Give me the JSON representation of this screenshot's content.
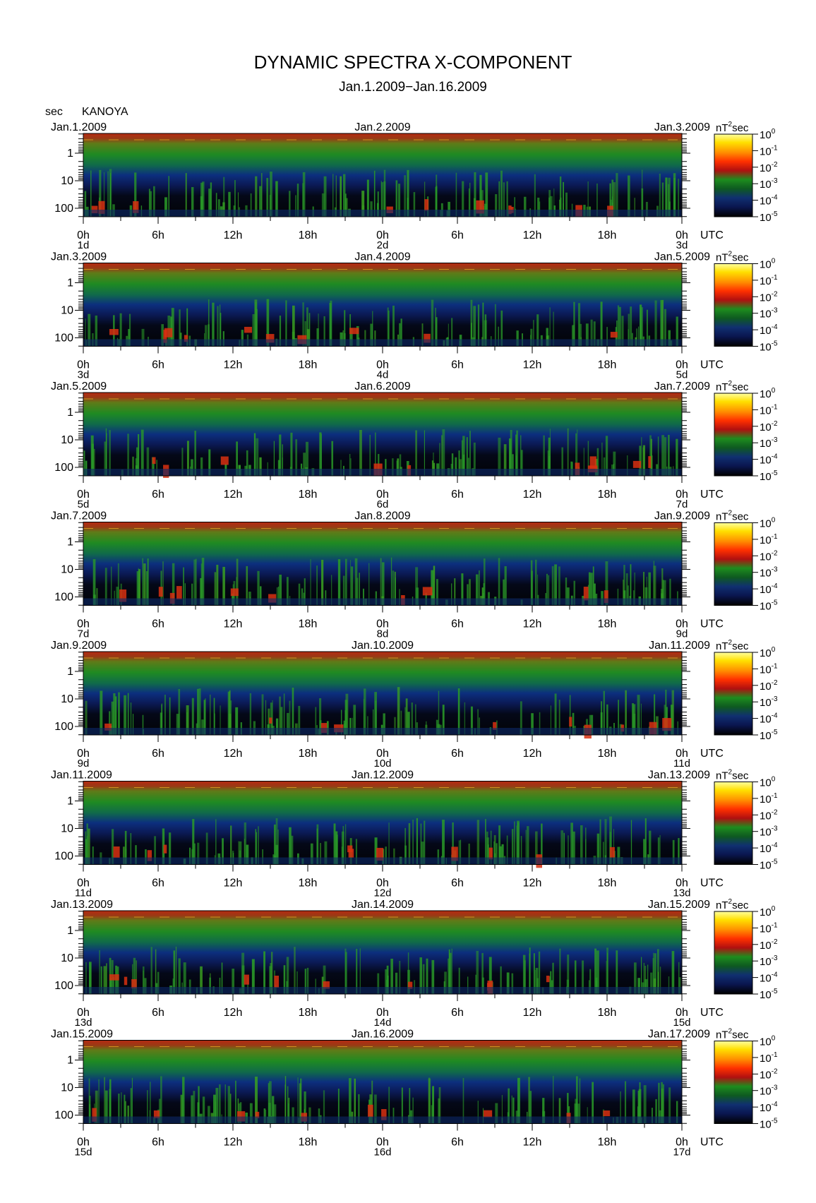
{
  "title": "DYNAMIC SPECTRA X-COMPONENT",
  "subtitle": "Jan.1.2009−Jan.16.2009",
  "y_unit": "sec",
  "station": "KANOYA",
  "x_unit": "UTC",
  "colorbar_unit": {
    "base": "nT",
    "sup": "2",
    "rest": "sec"
  },
  "colors": {
    "background": "#ffffff",
    "spectrum_low": "#000000",
    "spectrum_mid": "#0f2a7a",
    "spectrum_green": "#1e8c1e",
    "spectrum_high": "#e01010",
    "spectrum_max": "#ffe000"
  },
  "chart_data": {
    "type": "heatmap",
    "x_ticks": [
      "0h",
      "6h",
      "12h",
      "18h",
      "0h",
      "6h",
      "12h",
      "18h",
      "0h"
    ],
    "y_ticks": [
      "1",
      "10",
      "100"
    ],
    "y_scale": "log",
    "colorbar": {
      "ticks": [
        {
          "base": "10",
          "exp": "0"
        },
        {
          "base": "10",
          "exp": "-1"
        },
        {
          "base": "10",
          "exp": "-2"
        },
        {
          "base": "10",
          "exp": "-3"
        },
        {
          "base": "10",
          "exp": "-4"
        },
        {
          "base": "10",
          "exp": "-5"
        }
      ]
    },
    "panels": [
      {
        "date_left": "Jan.1.2009",
        "date_mid": "Jan.2.2009",
        "date_right": "Jan.3.2009",
        "day_left": "1d",
        "day_mid": "2d",
        "day_right": "3d"
      },
      {
        "date_left": "Jan.3.2009",
        "date_mid": "Jan.4.2009",
        "date_right": "Jan.5.2009",
        "day_left": "3d",
        "day_mid": "4d",
        "day_right": "5d"
      },
      {
        "date_left": "Jan.5.2009",
        "date_mid": "Jan.6.2009",
        "date_right": "Jan.7.2009",
        "day_left": "5d",
        "day_mid": "6d",
        "day_right": "7d"
      },
      {
        "date_left": "Jan.7.2009",
        "date_mid": "Jan.8.2009",
        "date_right": "Jan.9.2009",
        "day_left": "7d",
        "day_mid": "8d",
        "day_right": "9d"
      },
      {
        "date_left": "Jan.9.2009",
        "date_mid": "Jan.10.2009",
        "date_right": "Jan.11.2009",
        "day_left": "9d",
        "day_mid": "10d",
        "day_right": "11d"
      },
      {
        "date_left": "Jan.11.2009",
        "date_mid": "Jan.12.2009",
        "date_right": "Jan.13.2009",
        "day_left": "11d",
        "day_mid": "12d",
        "day_right": "13d"
      },
      {
        "date_left": "Jan.13.2009",
        "date_mid": "Jan.14.2009",
        "date_right": "Jan.15.2009",
        "day_left": "13d",
        "day_mid": "14d",
        "day_right": "15d"
      },
      {
        "date_left": "Jan.15.2009",
        "date_mid": "Jan.16.2009",
        "date_right": "Jan.17.2009",
        "day_left": "15d",
        "day_mid": "16d",
        "day_right": "17d"
      }
    ]
  }
}
